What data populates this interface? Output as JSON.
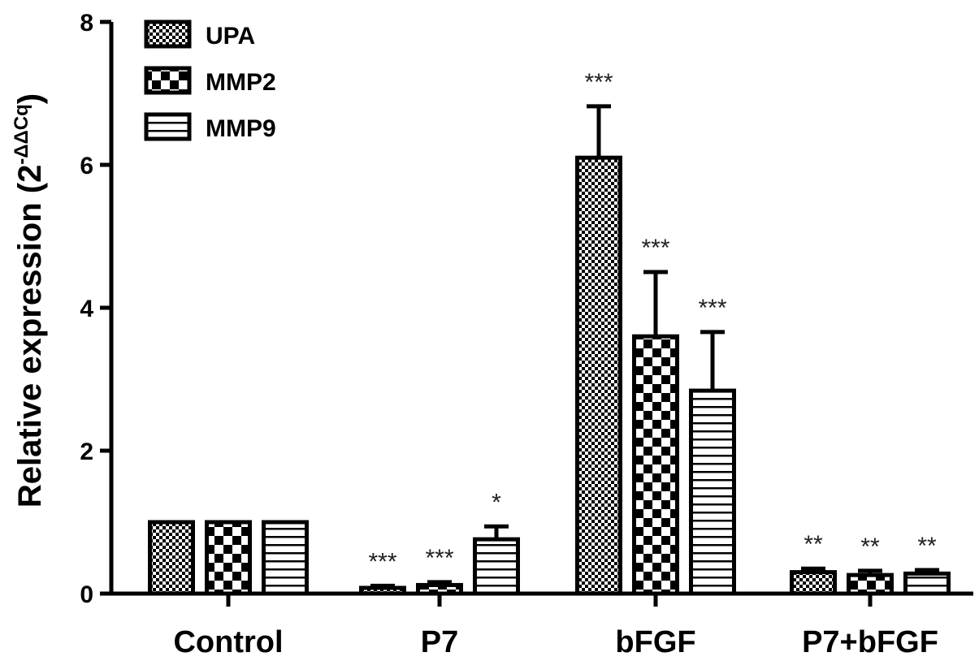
{
  "chart_data": {
    "type": "bar",
    "categories": [
      "Control",
      "P7",
      "bFGF",
      "P7+bFGF"
    ],
    "ylabel": {
      "main": "Relative expression (2",
      "exponent": "-ΔΔCq",
      "close": ")"
    },
    "ylim": [
      0,
      8
    ],
    "yticks": [
      "0",
      "2",
      "4",
      "6",
      "8"
    ],
    "legend_position": "top-left",
    "series": [
      {
        "name": "UPA",
        "pattern": "fine-checker",
        "values": [
          1.0,
          0.08,
          6.1,
          0.3
        ],
        "errors": [
          0.0,
          0.03,
          0.72,
          0.05
        ],
        "significance": [
          "",
          "***",
          "***",
          "**"
        ]
      },
      {
        "name": "MMP2",
        "pattern": "coarse-checker",
        "values": [
          1.0,
          0.12,
          3.6,
          0.26
        ],
        "errors": [
          0.0,
          0.04,
          0.9,
          0.06
        ],
        "significance": [
          "",
          "***",
          "***",
          "**"
        ]
      },
      {
        "name": "MMP9",
        "pattern": "horizontal-stripes",
        "values": [
          1.0,
          0.76,
          2.84,
          0.28
        ],
        "errors": [
          0.0,
          0.18,
          0.82,
          0.05
        ],
        "significance": [
          "",
          "*",
          "***",
          "**"
        ]
      }
    ]
  }
}
